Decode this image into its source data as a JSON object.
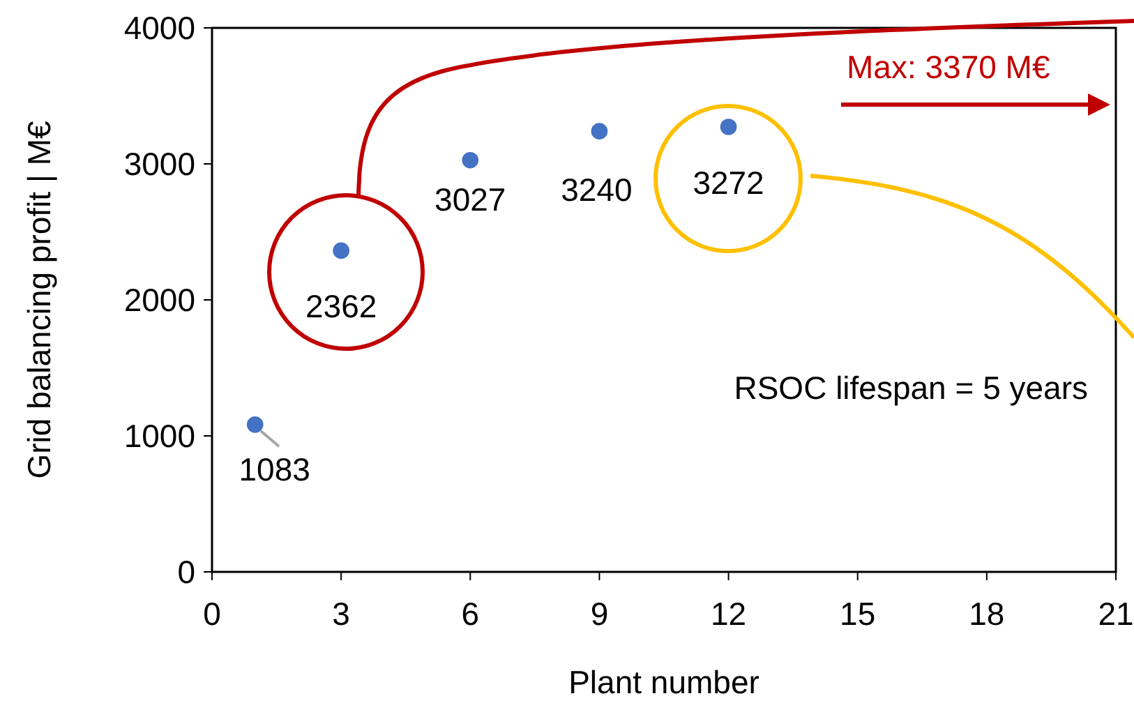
{
  "chart_data": {
    "type": "scatter",
    "xlabel": "Plant number",
    "ylabel": "Grid balancing profit | M€",
    "x": [
      1,
      3,
      6,
      9,
      12
    ],
    "values": [
      1083,
      2362,
      3027,
      3240,
      3272
    ],
    "color": "#4472c4",
    "marker": "circle",
    "data_labels": true,
    "xlim": [
      0,
      21
    ],
    "xticks": [
      0,
      3,
      6,
      9,
      12,
      15,
      18,
      21
    ],
    "ylim": [
      0,
      4000
    ],
    "yticks": [
      0,
      1000,
      2000,
      3000,
      4000
    ],
    "grid": false,
    "annotations": [
      "Max: 3370 M€",
      "RSOC lifespan = 5 years"
    ]
  }
}
